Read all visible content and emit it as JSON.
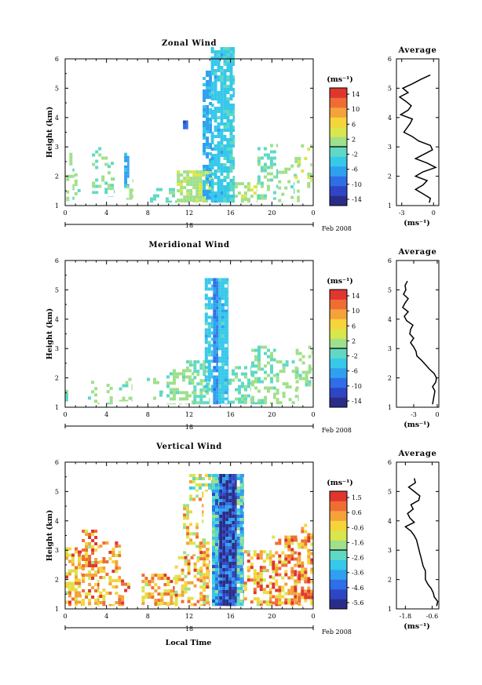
{
  "figure": {
    "x_axis_label": "Local Time",
    "date_label": "18",
    "month_label": "Feb 2008",
    "y_axis_label": "Height (km)",
    "colorbar_unit": "(ms⁻¹)",
    "profile_title": "Average",
    "profile_unit": "(ms⁻¹)"
  },
  "chart_data": [
    {
      "type": "heatmap",
      "title": "Zonal Wind",
      "x_ticks": [
        "0",
        "4",
        "8",
        "12",
        "16",
        "20",
        "0"
      ],
      "xlim_hours": [
        0,
        24
      ],
      "y_ticks": [
        "1",
        "2",
        "3",
        "4",
        "5",
        "6"
      ],
      "ylim_km": [
        1,
        6
      ],
      "colorbar_ticks": [
        "14",
        "10",
        "6",
        "2",
        "-2",
        "-6",
        "-10",
        "-14"
      ],
      "colorbar_range": [
        -16,
        16
      ],
      "palette": [
        "#2a2d87",
        "#2e46c4",
        "#2f6ee6",
        "#2fa0ef",
        "#37c8ea",
        "#5fd9c4",
        "#9fe08a",
        "#d9e64c",
        "#f5d53a",
        "#f5a23a",
        "#ef6d35",
        "#e0362e"
      ],
      "cells": [
        {
          "t0": 0.1,
          "t1": 0.9,
          "h0": 1.15,
          "h1": 2.8,
          "v": 1,
          "d": 0.35
        },
        {
          "t0": 0.9,
          "t1": 1.5,
          "h0": 1.2,
          "h1": 2.1,
          "v": 0,
          "d": 0.35
        },
        {
          "t0": 2.6,
          "t1": 4.2,
          "h0": 1.4,
          "h1": 3.1,
          "v": 0,
          "d": 0.2
        },
        {
          "t0": 4.1,
          "t1": 4.8,
          "h0": 1.3,
          "h1": 2.6,
          "v": 0,
          "d": 0.3
        },
        {
          "t0": 5.7,
          "t1": 6.2,
          "h0": 1.6,
          "h1": 2.8,
          "v": -6,
          "d": 0.7
        },
        {
          "t0": 5.9,
          "t1": 6.6,
          "h0": 1.2,
          "h1": 1.9,
          "v": 1,
          "d": 0.35
        },
        {
          "t0": 8.2,
          "t1": 10.8,
          "h0": 1.1,
          "h1": 1.6,
          "v": -1,
          "d": 0.5
        },
        {
          "t0": 10.8,
          "t1": 14.3,
          "h0": 1.1,
          "h1": 2.2,
          "v": 2,
          "d": 0.75
        },
        {
          "t0": 11.4,
          "t1": 11.9,
          "h0": 3.6,
          "h1": 3.9,
          "v": -10,
          "d": 1.0
        },
        {
          "t0": 13.3,
          "t1": 14.2,
          "h0": 1.2,
          "h1": 5.6,
          "v": -6,
          "d": 0.7
        },
        {
          "t0": 14.1,
          "t1": 15.3,
          "h0": 1.1,
          "h1": 6.4,
          "v": -4,
          "d": 0.85
        },
        {
          "t0": 15.3,
          "t1": 16.4,
          "h0": 1.1,
          "h1": 6.4,
          "v": -3,
          "d": 0.8
        },
        {
          "t0": 16.4,
          "t1": 18.6,
          "h0": 1.1,
          "h1": 1.8,
          "v": 2,
          "d": 0.6
        },
        {
          "t0": 18.6,
          "t1": 20.6,
          "h0": 1.2,
          "h1": 3.1,
          "v": 0,
          "d": 0.4
        },
        {
          "t0": 20.6,
          "t1": 22.7,
          "h0": 1.1,
          "h1": 2.4,
          "v": 1,
          "d": 0.25
        },
        {
          "t0": 22.2,
          "t1": 23.9,
          "h0": 1.6,
          "h1": 3.3,
          "v": 2,
          "d": 0.25
        },
        {
          "t0": 21.8,
          "t1": 22.2,
          "h0": 1.4,
          "h1": 1.8,
          "v": -1,
          "d": 0.5
        }
      ],
      "profile": {
        "xlim": [
          -3.5,
          0.5
        ],
        "x_ticks": [
          -3,
          0
        ],
        "x_tick_labels": [
          "-3",
          "0"
        ],
        "heights": [
          1.1,
          1.25,
          1.4,
          1.55,
          1.7,
          1.85,
          2.0,
          2.15,
          2.3,
          2.45,
          2.6,
          2.75,
          2.9,
          3.05,
          3.2,
          3.35,
          3.5,
          3.65,
          3.8,
          3.95,
          4.1,
          4.25,
          4.4,
          4.55,
          4.7,
          4.85,
          5.0,
          5.15,
          5.3,
          5.45
        ],
        "values": [
          -0.4,
          -0.3,
          -1.0,
          -1.7,
          -1.0,
          -0.6,
          -1.7,
          -1.0,
          0.2,
          -0.6,
          -1.7,
          -0.9,
          -0.1,
          -0.3,
          -1.4,
          -2.0,
          -2.8,
          -2.5,
          -2.2,
          -2.0,
          -3.1,
          -2.4,
          -2.1,
          -2.6,
          -3.2,
          -2.4,
          -2.9,
          -2.0,
          -1.2,
          -0.3
        ]
      }
    },
    {
      "type": "heatmap",
      "title": "Meridional Wind",
      "x_ticks": [
        "0",
        "4",
        "8",
        "12",
        "16",
        "20",
        "0"
      ],
      "xlim_hours": [
        0,
        24
      ],
      "y_ticks": [
        "1",
        "2",
        "3",
        "4",
        "5",
        "6"
      ],
      "ylim_km": [
        1,
        6
      ],
      "colorbar_ticks": [
        "14",
        "10",
        "6",
        "2",
        "-2",
        "-6",
        "-10",
        "-14"
      ],
      "colorbar_range": [
        -16,
        16
      ],
      "palette": [
        "#2a2d87",
        "#2e46c4",
        "#2f6ee6",
        "#2fa0ef",
        "#37c8ea",
        "#5fd9c4",
        "#9fe08a",
        "#d9e64c",
        "#f5d53a",
        "#f5a23a",
        "#ef6d35",
        "#e0362e"
      ],
      "cells": [
        {
          "t0": 0.0,
          "t1": 0.4,
          "h0": 1.2,
          "h1": 1.7,
          "v": -1,
          "d": 0.4
        },
        {
          "t0": 2.2,
          "t1": 3.3,
          "h0": 1.1,
          "h1": 1.9,
          "v": 1,
          "d": 0.35
        },
        {
          "t0": 4.0,
          "t1": 4.8,
          "h0": 1.1,
          "h1": 1.8,
          "v": 1,
          "d": 0.35
        },
        {
          "t0": 5.2,
          "t1": 6.5,
          "h0": 1.2,
          "h1": 2.0,
          "v": 1,
          "d": 0.4
        },
        {
          "t0": 7.9,
          "t1": 9.5,
          "h0": 1.1,
          "h1": 2.0,
          "v": 0,
          "d": 0.3
        },
        {
          "t0": 9.8,
          "t1": 12.5,
          "h0": 1.1,
          "h1": 2.3,
          "v": 1,
          "d": 0.55
        },
        {
          "t0": 11.7,
          "t1": 12.4,
          "h0": 2.3,
          "h1": 2.6,
          "v": 0,
          "d": 0.5
        },
        {
          "t0": 12.4,
          "t1": 14.0,
          "h0": 1.1,
          "h1": 2.6,
          "v": 0,
          "d": 0.6
        },
        {
          "t0": 13.5,
          "t1": 14.3,
          "h0": 1.5,
          "h1": 5.4,
          "v": -4,
          "d": 0.65
        },
        {
          "t0": 14.3,
          "t1": 14.8,
          "h0": 1.1,
          "h1": 5.4,
          "v": -8,
          "d": 0.95
        },
        {
          "t0": 14.8,
          "t1": 15.8,
          "h0": 1.1,
          "h1": 5.4,
          "v": -4,
          "d": 0.9
        },
        {
          "t0": 15.8,
          "t1": 18.0,
          "h0": 1.1,
          "h1": 2.4,
          "v": -1,
          "d": 0.5
        },
        {
          "t0": 18.0,
          "t1": 20.4,
          "h0": 1.1,
          "h1": 3.1,
          "v": 0,
          "d": 0.45
        },
        {
          "t0": 20.4,
          "t1": 22.6,
          "h0": 1.1,
          "h1": 2.6,
          "v": 1,
          "d": 0.3
        },
        {
          "t0": 22.3,
          "t1": 23.9,
          "h0": 1.6,
          "h1": 3.1,
          "v": 1,
          "d": 0.25
        }
      ],
      "profile": {
        "xlim": [
          -5.2,
          0.2
        ],
        "x_ticks": [
          -3,
          0
        ],
        "x_tick_labels": [
          "-3",
          "0"
        ],
        "heights": [
          1.1,
          1.25,
          1.4,
          1.55,
          1.7,
          1.85,
          2.0,
          2.15,
          2.3,
          2.45,
          2.6,
          2.75,
          2.9,
          3.05,
          3.2,
          3.35,
          3.5,
          3.65,
          3.8,
          3.95,
          4.1,
          4.25,
          4.4,
          4.55,
          4.7,
          4.85,
          5.0,
          5.15,
          5.3
        ],
        "values": [
          -0.6,
          -0.5,
          -0.4,
          -0.3,
          -0.6,
          -0.2,
          -0.1,
          -0.4,
          -1.0,
          -1.5,
          -2.0,
          -2.6,
          -2.7,
          -3.0,
          -3.4,
          -3.0,
          -3.5,
          -3.4,
          -3.1,
          -3.9,
          -4.2,
          -3.7,
          -4.4,
          -4.1,
          -3.7,
          -4.3,
          -4.0,
          -4.1,
          -3.8
        ]
      }
    },
    {
      "type": "heatmap",
      "title": "Vertical Wind",
      "x_ticks": [
        "0",
        "4",
        "8",
        "12",
        "16",
        "20",
        "0"
      ],
      "xlim_hours": [
        0,
        24
      ],
      "y_ticks": [
        "1",
        "2",
        "3",
        "4",
        "5",
        "6"
      ],
      "ylim_km": [
        1,
        6
      ],
      "colorbar_ticks": [
        "1.5",
        "0.6",
        "-0.6",
        "-1.6",
        "-2.6",
        "-3.6",
        "-4.6",
        "-5.6"
      ],
      "colorbar_range": [
        -6.0,
        2.0
      ],
      "palette": [
        "#2a2d87",
        "#2e46c4",
        "#2f6ee6",
        "#2fa0ef",
        "#37c8ea",
        "#5fd9c4",
        "#9fe08a",
        "#d9e64c",
        "#f5d53a",
        "#f5a23a",
        "#ef6d35",
        "#e0362e"
      ],
      "cells": [
        {
          "t0": 0.0,
          "t1": 1.6,
          "h0": 1.1,
          "h1": 3.1,
          "v": 0.1,
          "d": 0.55
        },
        {
          "t0": 1.6,
          "t1": 3.3,
          "h0": 1.1,
          "h1": 3.7,
          "v": 0.2,
          "d": 0.5
        },
        {
          "t0": 3.3,
          "t1": 5.4,
          "h0": 1.1,
          "h1": 3.3,
          "v": 0.1,
          "d": 0.45
        },
        {
          "t0": 5.4,
          "t1": 6.3,
          "h0": 1.1,
          "h1": 2.0,
          "v": 0.3,
          "d": 0.3
        },
        {
          "t0": 7.4,
          "t1": 10.6,
          "h0": 1.1,
          "h1": 2.2,
          "v": 0.2,
          "d": 0.55
        },
        {
          "t0": 10.6,
          "t1": 13.0,
          "h0": 1.1,
          "h1": 2.8,
          "v": 0.0,
          "d": 0.6
        },
        {
          "t0": 11.4,
          "t1": 13.4,
          "h0": 2.8,
          "h1": 5.0,
          "v": -0.3,
          "d": 0.3
        },
        {
          "t0": 13.0,
          "t1": 14.0,
          "h0": 1.1,
          "h1": 3.4,
          "v": -0.2,
          "d": 0.7
        },
        {
          "t0": 12.0,
          "t1": 14.2,
          "h0": 5.0,
          "h1": 5.6,
          "v": -1.2,
          "d": 0.6
        },
        {
          "t0": 14.2,
          "t1": 14.9,
          "h0": 1.1,
          "h1": 5.6,
          "v": -3.2,
          "d": 1.0
        },
        {
          "t0": 14.9,
          "t1": 16.6,
          "h0": 1.1,
          "h1": 5.6,
          "v": -5.2,
          "d": 1.0
        },
        {
          "t0": 16.6,
          "t1": 17.3,
          "h0": 1.1,
          "h1": 5.6,
          "v": -3.0,
          "d": 0.95
        },
        {
          "t0": 17.3,
          "t1": 20.0,
          "h0": 1.1,
          "h1": 3.0,
          "v": 0.1,
          "d": 0.5
        },
        {
          "t0": 20.0,
          "t1": 22.5,
          "h0": 1.1,
          "h1": 3.5,
          "v": 0.4,
          "d": 0.55
        },
        {
          "t0": 22.5,
          "t1": 24.0,
          "h0": 1.1,
          "h1": 3.9,
          "v": 0.6,
          "d": 0.55
        }
      ],
      "profile": {
        "xlim": [
          -2.2,
          -0.3
        ],
        "x_ticks": [
          -1.8,
          -0.6
        ],
        "x_tick_labels": [
          "-1.8",
          "-0.6"
        ],
        "heights": [
          1.1,
          1.25,
          1.4,
          1.55,
          1.7,
          1.85,
          2.0,
          2.15,
          2.3,
          2.45,
          2.6,
          2.75,
          2.9,
          3.05,
          3.2,
          3.35,
          3.5,
          3.65,
          3.8,
          3.95,
          4.1,
          4.25,
          4.4,
          4.55,
          4.7,
          4.85,
          5.0,
          5.15,
          5.3,
          5.45
        ],
        "values": [
          -0.4,
          -0.35,
          -0.5,
          -0.55,
          -0.65,
          -0.8,
          -0.9,
          -0.9,
          -0.9,
          -1.0,
          -1.05,
          -1.1,
          -1.15,
          -1.2,
          -1.25,
          -1.3,
          -1.4,
          -1.55,
          -1.8,
          -1.4,
          -1.6,
          -1.7,
          -1.45,
          -1.55,
          -1.2,
          -1.15,
          -1.4,
          -1.65,
          -1.35,
          -1.4
        ]
      }
    }
  ]
}
